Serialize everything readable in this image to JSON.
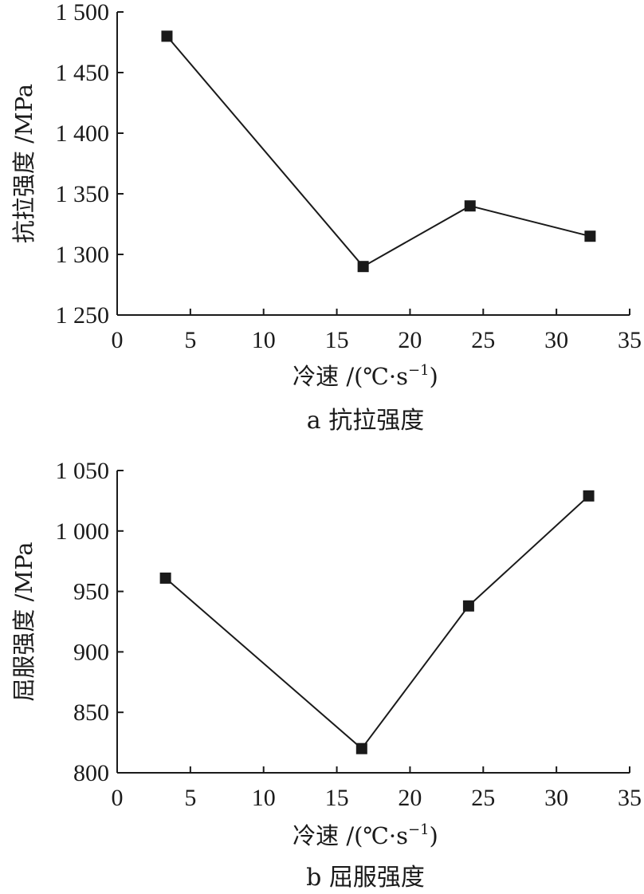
{
  "chart_data": [
    {
      "type": "line",
      "caption": "a 抗拉强度",
      "xlabel": "冷速 /(℃·s",
      "xlabel_sup": "−1",
      "xlabel_end": ")",
      "ylabel": "抗拉强度 /MPa",
      "xlim": [
        0,
        35
      ],
      "ylim": [
        1250,
        1500
      ],
      "xticks": [
        0,
        5,
        10,
        15,
        20,
        25,
        30,
        35
      ],
      "xtick_labels": [
        "0",
        "5",
        "10",
        "15",
        "20",
        "25",
        "30",
        "35"
      ],
      "yticks": [
        1250,
        1300,
        1350,
        1400,
        1450,
        1500
      ],
      "ytick_labels": [
        "1 250",
        "1 300",
        "1 350",
        "1 400",
        "1 450",
        "1 500"
      ],
      "grid": false,
      "marker": "square",
      "series": [
        {
          "x": [
            3.4,
            16.8,
            24.1,
            32.3
          ],
          "y": [
            1480,
            1290,
            1340,
            1315
          ]
        }
      ]
    },
    {
      "type": "line",
      "caption": "b 屈服强度",
      "xlabel": "冷速 /(℃·s",
      "xlabel_sup": "−1",
      "xlabel_end": ")",
      "ylabel": "屈服强度 /MPa",
      "xlim": [
        0,
        35
      ],
      "ylim": [
        800,
        1050
      ],
      "xticks": [
        0,
        5,
        10,
        15,
        20,
        25,
        30,
        35
      ],
      "xtick_labels": [
        "0",
        "5",
        "10",
        "15",
        "20",
        "25",
        "30",
        "35"
      ],
      "yticks": [
        800,
        850,
        900,
        950,
        1000,
        1050
      ],
      "ytick_labels": [
        "800",
        "850",
        "900",
        "950",
        "1 000",
        "1 050"
      ],
      "grid": false,
      "marker": "square",
      "series": [
        {
          "x": [
            3.3,
            16.7,
            24.0,
            32.2
          ],
          "y": [
            961,
            820,
            938,
            1029
          ]
        }
      ]
    }
  ]
}
